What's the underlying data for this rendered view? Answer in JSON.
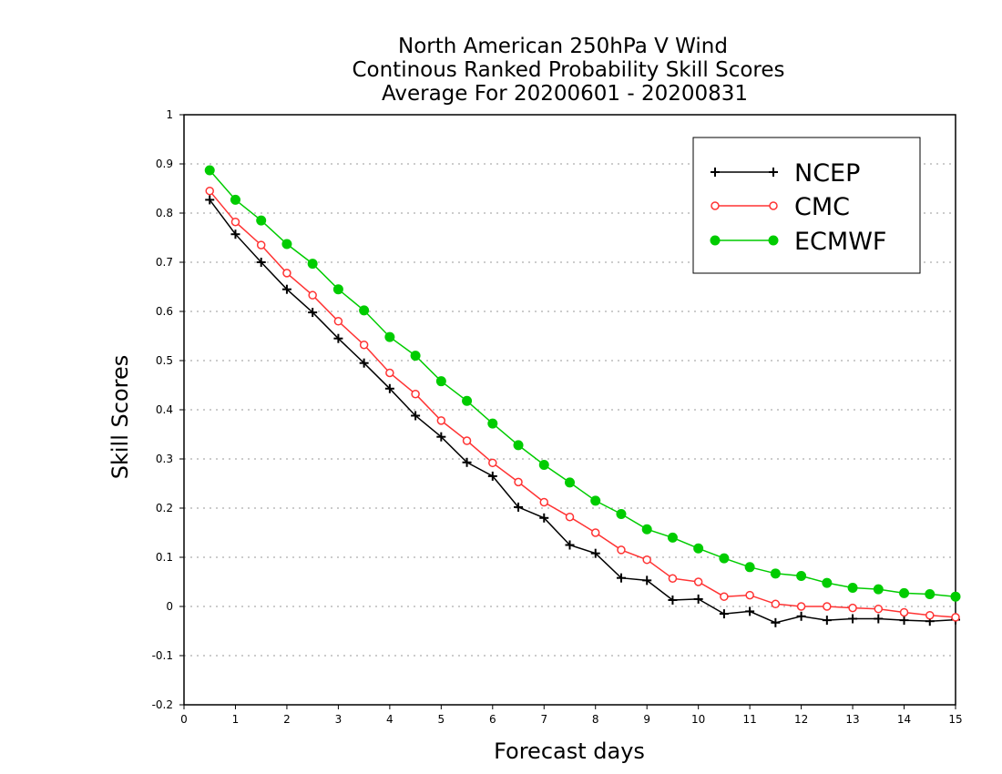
{
  "chart_data": {
    "type": "line",
    "title_lines": [
      "North American 250hPa V Wind",
      "Continous Ranked Probability Skill Scores",
      "Average For 20200601 - 20200831"
    ],
    "xlabel": "Forecast days",
    "ylabel": "Skill Scores",
    "xlim": [
      0,
      15
    ],
    "ylim": [
      -0.2,
      1
    ],
    "x_ticks": [
      "0",
      "1",
      "2",
      "3",
      "4",
      "5",
      "6",
      "7",
      "8",
      "9",
      "10",
      "11",
      "12",
      "13",
      "14",
      "15"
    ],
    "y_ticks": [
      "1",
      "0.9",
      "0.8",
      "0.7",
      "0.6",
      "0.5",
      "0.4",
      "0.3",
      "0.2",
      "0.1",
      "0",
      "-0.1",
      "-0.2"
    ],
    "grid": "dotted horizontal",
    "legend_position": "top-right",
    "x": [
      0.5,
      1,
      1.5,
      2,
      2.5,
      3,
      3.5,
      4,
      4.5,
      5,
      5.5,
      6,
      6.5,
      7,
      7.5,
      8,
      8.5,
      9,
      9.5,
      10,
      10.5,
      11,
      11.5,
      12,
      12.5,
      13,
      13.5,
      14,
      14.5,
      15
    ],
    "series": [
      {
        "name": "NCEP",
        "color": "#000000",
        "marker": "plus",
        "values": [
          0.827,
          0.757,
          0.7,
          0.645,
          0.598,
          0.545,
          0.495,
          0.443,
          0.388,
          0.345,
          0.293,
          0.265,
          0.202,
          0.18,
          0.125,
          0.108,
          0.058,
          0.053,
          0.013,
          0.015,
          -0.015,
          -0.01,
          -0.033,
          -0.02,
          -0.028,
          -0.025,
          -0.025,
          -0.028,
          -0.03,
          -0.027
        ]
      },
      {
        "name": "CMC",
        "color": "#ff3333",
        "marker": "open-circle",
        "values": [
          0.845,
          0.782,
          0.735,
          0.678,
          0.633,
          0.58,
          0.532,
          0.475,
          0.432,
          0.378,
          0.337,
          0.292,
          0.253,
          0.212,
          0.182,
          0.15,
          0.115,
          0.095,
          0.057,
          0.05,
          0.02,
          0.023,
          0.005,
          0.0,
          0.0,
          -0.003,
          -0.005,
          -0.012,
          -0.018,
          -0.022
        ]
      },
      {
        "name": "ECMWF",
        "color": "#00cc00",
        "marker": "filled-circle",
        "values": [
          0.887,
          0.827,
          0.785,
          0.737,
          0.697,
          0.645,
          0.602,
          0.548,
          0.51,
          0.458,
          0.418,
          0.372,
          0.328,
          0.288,
          0.252,
          0.215,
          0.188,
          0.157,
          0.14,
          0.118,
          0.098,
          0.08,
          0.067,
          0.062,
          0.048,
          0.038,
          0.035,
          0.027,
          0.025,
          0.02
        ]
      }
    ]
  }
}
